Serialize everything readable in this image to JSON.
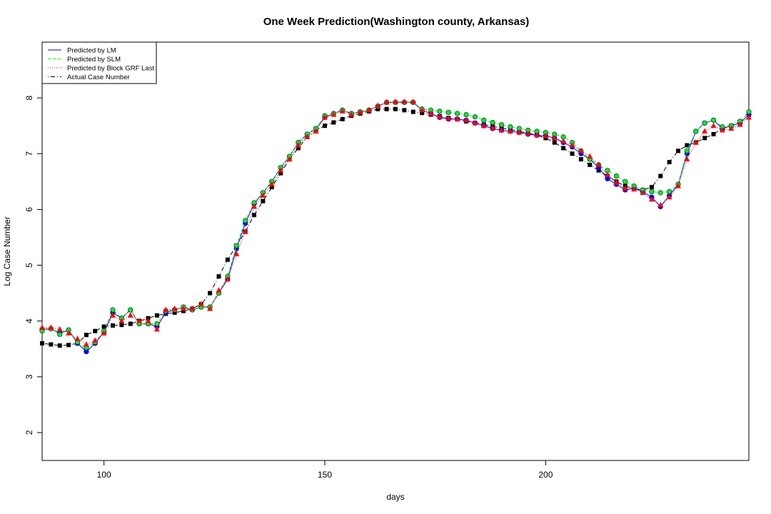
{
  "chart_data": {
    "type": "line",
    "title": "One Week Prediction(Washington county, Arkansas)",
    "xlabel": "days",
    "ylabel": "Log Case Number",
    "xlim": [
      86,
      246
    ],
    "ylim": [
      1.5,
      9.0
    ],
    "x_ticks": [
      100,
      150,
      200
    ],
    "y_ticks": [
      2,
      3,
      4,
      5,
      6,
      7,
      8
    ],
    "grid": false,
    "legend_position": "top-left",
    "legend": [
      {
        "label": "Predicted by LM",
        "color": "#0000ff",
        "dash": "solid"
      },
      {
        "label": "Predicted by SLM",
        "color": "#00ff00",
        "dash": "dashed"
      },
      {
        "label": "Predicted by Block GRF Last",
        "color": "#ff0000",
        "dash": "dotted"
      },
      {
        "label": "Actual Case Number",
        "color": "#000000",
        "dash": "dotdash"
      }
    ],
    "series": [
      {
        "name": "Actual Case Number",
        "color": "#000000",
        "marker": "square",
        "x": [
          86,
          88,
          90,
          92,
          94,
          96,
          98,
          100,
          102,
          104,
          106,
          108,
          110,
          112,
          114,
          116,
          118,
          120,
          122,
          124,
          126,
          128,
          130,
          132,
          134,
          136,
          138,
          140,
          142,
          144,
          146,
          148,
          150,
          152,
          154,
          156,
          158,
          160,
          162,
          164,
          166,
          168,
          170,
          172,
          174,
          176,
          178,
          180,
          182,
          184,
          186,
          188,
          190,
          192,
          194,
          196,
          198,
          200,
          202,
          204,
          206,
          208,
          210,
          212,
          214,
          216,
          218,
          220,
          222,
          224,
          226,
          228,
          230,
          232,
          234,
          236,
          238,
          240,
          242,
          244,
          246
        ],
        "values": [
          3.6,
          3.58,
          3.56,
          3.57,
          3.6,
          3.75,
          3.82,
          3.9,
          3.92,
          3.93,
          3.95,
          4.0,
          4.05,
          4.1,
          4.13,
          4.15,
          4.18,
          4.22,
          4.3,
          4.5,
          4.8,
          5.1,
          5.35,
          5.6,
          5.9,
          6.15,
          6.4,
          6.65,
          6.9,
          7.1,
          7.3,
          7.42,
          7.5,
          7.56,
          7.62,
          7.68,
          7.72,
          7.76,
          7.8,
          7.8,
          7.8,
          7.78,
          7.75,
          7.73,
          7.7,
          7.67,
          7.64,
          7.62,
          7.58,
          7.55,
          7.52,
          7.49,
          7.46,
          7.43,
          7.4,
          7.37,
          7.33,
          7.28,
          7.2,
          7.1,
          7.0,
          6.9,
          6.8,
          6.7,
          6.6,
          6.5,
          6.42,
          6.37,
          6.35,
          6.4,
          6.6,
          6.85,
          7.05,
          7.15,
          7.2,
          7.28,
          7.35,
          7.45,
          7.5,
          7.55,
          7.7
        ]
      },
      {
        "name": "Predicted by LM",
        "color": "#0000ff",
        "marker": "circle",
        "x": [
          86,
          88,
          90,
          92,
          94,
          96,
          98,
          100,
          102,
          104,
          106,
          108,
          110,
          112,
          114,
          116,
          118,
          120,
          122,
          124,
          126,
          128,
          130,
          132,
          134,
          136,
          138,
          140,
          142,
          144,
          146,
          148,
          150,
          152,
          154,
          156,
          158,
          160,
          162,
          164,
          166,
          168,
          170,
          172,
          174,
          176,
          178,
          180,
          182,
          184,
          186,
          188,
          190,
          192,
          194,
          196,
          198,
          200,
          202,
          204,
          206,
          208,
          210,
          212,
          214,
          216,
          218,
          220,
          222,
          224,
          226,
          228,
          230,
          232,
          234,
          236,
          238,
          240,
          242,
          244,
          246
        ],
        "values": [
          3.85,
          3.86,
          3.78,
          3.84,
          3.6,
          3.45,
          3.6,
          3.8,
          4.15,
          4.05,
          4.2,
          3.95,
          3.95,
          3.9,
          4.15,
          4.2,
          4.25,
          4.2,
          4.25,
          4.25,
          4.5,
          4.75,
          5.3,
          5.75,
          6.1,
          6.3,
          6.5,
          6.75,
          6.95,
          7.2,
          7.35,
          7.45,
          7.65,
          7.72,
          7.78,
          7.72,
          7.75,
          7.78,
          7.85,
          7.92,
          7.92,
          7.92,
          7.92,
          7.78,
          7.72,
          7.65,
          7.62,
          7.62,
          7.6,
          7.55,
          7.5,
          7.45,
          7.42,
          7.4,
          7.38,
          7.35,
          7.33,
          7.32,
          7.28,
          7.2,
          7.12,
          7.0,
          6.9,
          6.75,
          6.55,
          6.45,
          6.35,
          6.38,
          6.32,
          6.22,
          6.05,
          6.25,
          6.45,
          7.0,
          7.4,
          7.55,
          7.6,
          7.45,
          7.5,
          7.55,
          7.7
        ]
      },
      {
        "name": "Predicted by SLM",
        "color": "#00ff00",
        "marker": "diamond",
        "x": [
          86,
          88,
          90,
          92,
          94,
          96,
          98,
          100,
          102,
          104,
          106,
          108,
          110,
          112,
          114,
          116,
          118,
          120,
          122,
          124,
          126,
          128,
          130,
          132,
          134,
          136,
          138,
          140,
          142,
          144,
          146,
          148,
          150,
          152,
          154,
          156,
          158,
          160,
          162,
          164,
          166,
          168,
          170,
          172,
          174,
          176,
          178,
          180,
          182,
          184,
          186,
          188,
          190,
          192,
          194,
          196,
          198,
          200,
          202,
          204,
          206,
          208,
          210,
          212,
          214,
          216,
          218,
          220,
          222,
          224,
          226,
          228,
          230,
          232,
          234,
          236,
          238,
          240,
          242,
          244,
          246
        ],
        "values": [
          3.82,
          3.86,
          3.76,
          3.84,
          3.62,
          3.52,
          3.62,
          3.82,
          4.2,
          4.05,
          4.2,
          3.95,
          3.95,
          3.95,
          4.18,
          4.2,
          4.25,
          4.2,
          4.25,
          4.25,
          4.5,
          4.8,
          5.35,
          5.8,
          6.12,
          6.3,
          6.5,
          6.75,
          6.95,
          7.2,
          7.35,
          7.45,
          7.68,
          7.72,
          7.78,
          7.72,
          7.75,
          7.78,
          7.85,
          7.92,
          7.92,
          7.92,
          7.92,
          7.8,
          7.78,
          7.76,
          7.74,
          7.72,
          7.7,
          7.66,
          7.6,
          7.56,
          7.52,
          7.48,
          7.45,
          7.42,
          7.4,
          7.38,
          7.35,
          7.3,
          7.2,
          7.05,
          6.9,
          6.8,
          6.7,
          6.6,
          6.5,
          6.42,
          6.35,
          6.32,
          6.3,
          6.32,
          6.45,
          7.05,
          7.4,
          7.55,
          7.6,
          7.48,
          7.5,
          7.58,
          7.75
        ]
      },
      {
        "name": "Predicted by Block GRF Last",
        "color": "#ff0000",
        "marker": "triangle",
        "x": [
          86,
          88,
          90,
          92,
          94,
          96,
          98,
          100,
          102,
          104,
          106,
          108,
          110,
          112,
          114,
          116,
          118,
          120,
          122,
          124,
          126,
          128,
          130,
          132,
          134,
          136,
          138,
          140,
          142,
          144,
          146,
          148,
          150,
          152,
          154,
          156,
          158,
          160,
          162,
          164,
          166,
          168,
          170,
          172,
          174,
          176,
          178,
          180,
          182,
          184,
          186,
          188,
          190,
          192,
          194,
          196,
          198,
          200,
          202,
          204,
          206,
          208,
          210,
          212,
          214,
          216,
          218,
          220,
          222,
          224,
          226,
          228,
          230,
          232,
          234,
          236,
          238,
          240,
          242,
          244,
          246
        ],
        "values": [
          3.88,
          3.88,
          3.85,
          3.78,
          3.68,
          3.58,
          3.65,
          3.78,
          4.1,
          4.0,
          4.1,
          4.0,
          4.0,
          3.85,
          4.2,
          4.22,
          4.22,
          4.22,
          4.3,
          4.22,
          4.55,
          4.75,
          5.2,
          5.6,
          6.05,
          6.25,
          6.45,
          6.7,
          6.9,
          7.15,
          7.3,
          7.4,
          7.65,
          7.7,
          7.76,
          7.7,
          7.74,
          7.78,
          7.86,
          7.92,
          7.93,
          7.93,
          7.93,
          7.78,
          7.72,
          7.66,
          7.63,
          7.62,
          7.6,
          7.55,
          7.5,
          7.46,
          7.42,
          7.4,
          7.38,
          7.36,
          7.33,
          7.32,
          7.28,
          7.22,
          7.15,
          7.05,
          6.95,
          6.8,
          6.62,
          6.48,
          6.38,
          6.36,
          6.3,
          6.18,
          6.08,
          6.22,
          6.42,
          6.9,
          7.2,
          7.4,
          7.5,
          7.42,
          7.45,
          7.52,
          7.65
        ]
      }
    ]
  }
}
